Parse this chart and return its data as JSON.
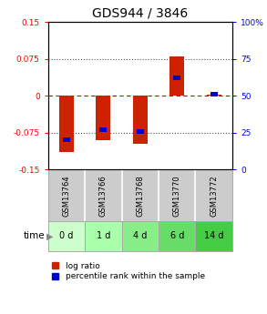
{
  "title": "GDS944 / 3846",
  "samples": [
    "GSM13764",
    "GSM13766",
    "GSM13768",
    "GSM13770",
    "GSM13772"
  ],
  "time_labels": [
    "0 d",
    "1 d",
    "4 d",
    "6 d",
    "14 d"
  ],
  "log_ratios": [
    -0.115,
    -0.09,
    -0.097,
    0.08,
    0.003
  ],
  "percentile_ranks": [
    20,
    27,
    26,
    62,
    51
  ],
  "ylim": [
    -0.15,
    0.15
  ],
  "y_ticks_left": [
    -0.15,
    -0.075,
    0,
    0.075,
    0.15
  ],
  "y_ticks_right": [
    0,
    25,
    50,
    75,
    100
  ],
  "bar_color": "#cc2200",
  "pct_color": "#0000cc",
  "dashed_line_color": "#cc0000",
  "dotted_line_color": "#555555",
  "bg_color": "#ffffff",
  "plot_bg_color": "#ffffff",
  "sample_bg_color": "#cccccc",
  "time_bg_colors": [
    "#ccffcc",
    "#aaffaa",
    "#88ee88",
    "#66dd66",
    "#44cc44"
  ],
  "bar_width": 0.4,
  "pct_bar_width": 0.2
}
